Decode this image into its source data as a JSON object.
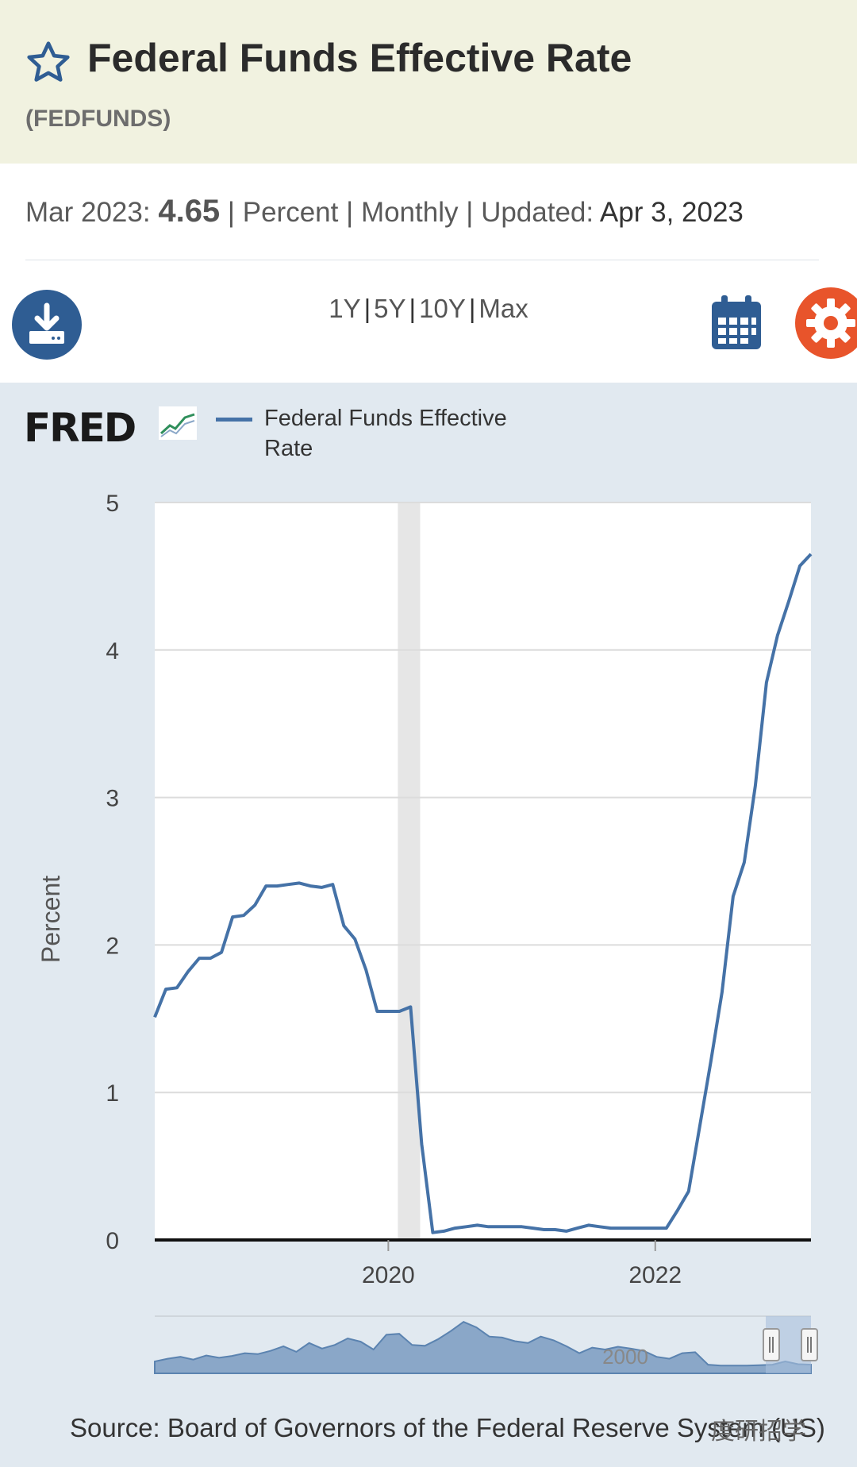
{
  "header": {
    "title": "Federal Funds Effective Rate",
    "series_id": "(FEDFUNDS)"
  },
  "meta": {
    "date_label": "Mar 2023:",
    "value": "4.65",
    "units": "Percent",
    "frequency": "Monthly",
    "updated_label": "Updated:",
    "updated_date": "Apr 3, 2023"
  },
  "toolbar": {
    "range_1y": "1Y",
    "range_5y": "5Y",
    "range_10y": "10Y",
    "range_max": "Max",
    "separator": "|"
  },
  "icons": {
    "favorite": "star-icon",
    "download": "download-icon",
    "date_picker": "calendar-icon",
    "settings": "gear-icon"
  },
  "colors": {
    "series": "#4572a7",
    "header_bg": "#f1f2e0",
    "panel_bg": "#e1e9f0",
    "button_blue": "#2f5d93",
    "settings_orange": "#e8542b"
  },
  "logo": {
    "text": "FRED"
  },
  "chart_data": {
    "type": "line",
    "ylabel": "Percent",
    "ylim": [
      0,
      5
    ],
    "yticks": [
      "0",
      "1",
      "2",
      "3",
      "4",
      "5"
    ],
    "x_tick_labels": [
      "2020",
      "2022"
    ],
    "xlim": [
      "2018-04",
      "2023-03"
    ],
    "grid": true,
    "recession_shading": {
      "start": "2020-02",
      "end": "2020-04"
    },
    "series": [
      {
        "name": "Federal Funds Effective Rate",
        "x": [
          "2018-04",
          "2018-05",
          "2018-06",
          "2018-07",
          "2018-08",
          "2018-09",
          "2018-10",
          "2018-11",
          "2018-12",
          "2019-01",
          "2019-02",
          "2019-03",
          "2019-04",
          "2019-05",
          "2019-06",
          "2019-07",
          "2019-08",
          "2019-09",
          "2019-10",
          "2019-11",
          "2019-12",
          "2020-01",
          "2020-02",
          "2020-03",
          "2020-04",
          "2020-05",
          "2020-06",
          "2020-07",
          "2020-08",
          "2020-09",
          "2020-10",
          "2020-11",
          "2020-12",
          "2021-01",
          "2021-02",
          "2021-03",
          "2021-04",
          "2021-05",
          "2021-06",
          "2021-07",
          "2021-08",
          "2021-09",
          "2021-10",
          "2021-11",
          "2021-12",
          "2022-01",
          "2022-02",
          "2022-03",
          "2022-04",
          "2022-05",
          "2022-06",
          "2022-07",
          "2022-08",
          "2022-09",
          "2022-10",
          "2022-11",
          "2022-12",
          "2023-01",
          "2023-02",
          "2023-03"
        ],
        "values": [
          1.51,
          1.7,
          1.71,
          1.82,
          1.91,
          1.91,
          1.95,
          2.19,
          2.2,
          2.27,
          2.4,
          2.4,
          2.41,
          2.42,
          2.4,
          2.39,
          2.41,
          2.13,
          2.04,
          1.83,
          1.55,
          1.55,
          1.55,
          1.58,
          0.65,
          0.05,
          0.06,
          0.08,
          0.09,
          0.1,
          0.09,
          0.09,
          0.09,
          0.09,
          0.08,
          0.07,
          0.07,
          0.06,
          0.08,
          0.1,
          0.09,
          0.08,
          0.08,
          0.08,
          0.08,
          0.08,
          0.08,
          0.2,
          0.33,
          0.77,
          1.21,
          1.68,
          2.33,
          2.56,
          3.08,
          3.78,
          4.1,
          4.33,
          4.57,
          4.65
        ]
      }
    ]
  },
  "navigator": {
    "tick_label": "2000"
  },
  "source": "Source: Board of Governors of the Federal Reserve System (US)",
  "watermark": "度研招学"
}
